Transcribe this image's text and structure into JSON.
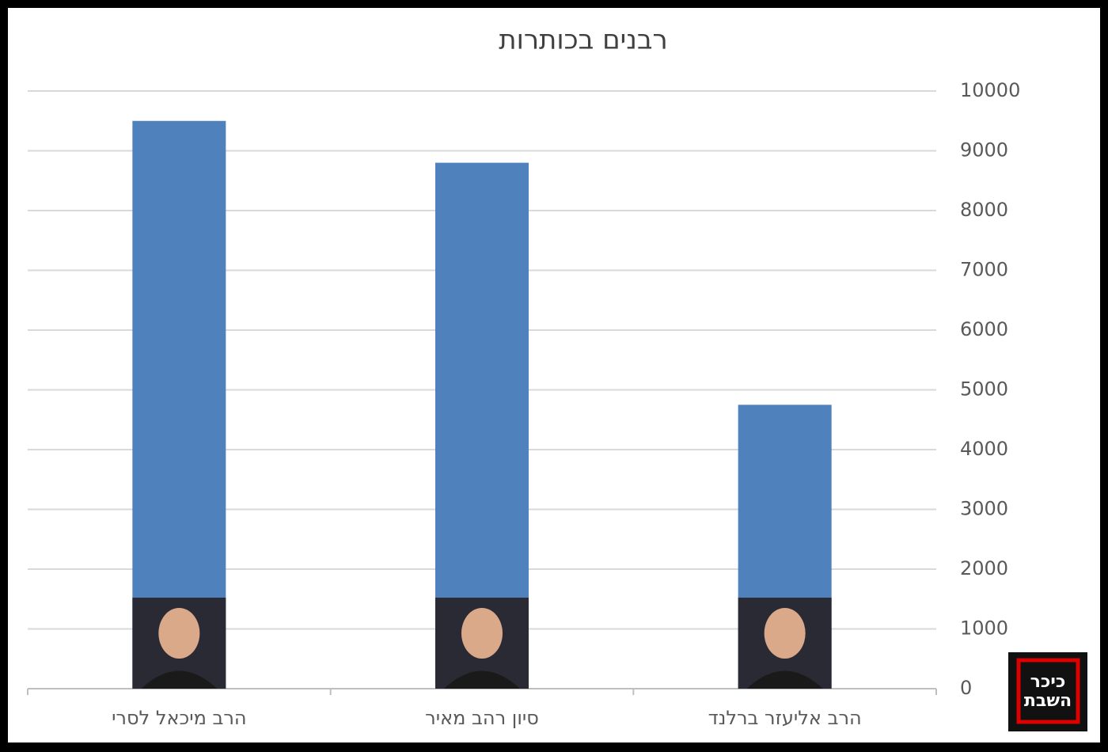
{
  "chart_data": {
    "type": "bar",
    "title": "רבנים בכותרות",
    "categories": [
      "הרב מיכאל לסרי",
      "סיון רהב מאיר",
      "הרב אליעזר ברלנד"
    ],
    "values": [
      9500,
      8800,
      4750
    ],
    "color": "#4f81bd",
    "ylim": [
      0,
      10000
    ],
    "yticks": [
      0,
      1000,
      2000,
      3000,
      4000,
      5000,
      6000,
      7000,
      8000,
      9000,
      10000
    ],
    "grid": true,
    "yaxis_side": "right"
  },
  "logo": {
    "lines": [
      "כיכר",
      "השבת"
    ]
  }
}
